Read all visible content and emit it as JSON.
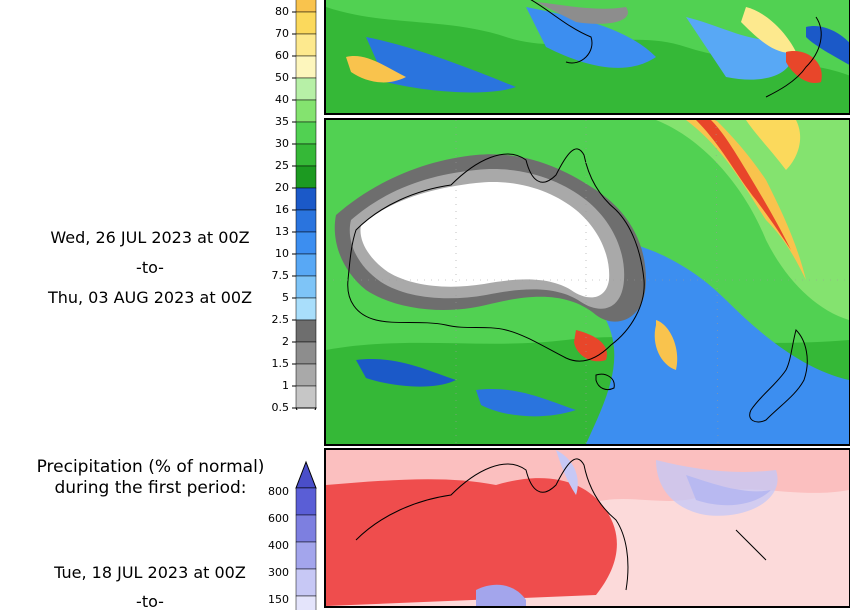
{
  "precip_scale": {
    "labels": [
      "80",
      "70",
      "60",
      "50",
      "40",
      "35",
      "30",
      "25",
      "20",
      "16",
      "13",
      "10",
      "7.5",
      "5",
      "2.5",
      "2",
      "1.5",
      "1",
      "0.5"
    ],
    "colors": [
      "#f9c34d",
      "#fbd95c",
      "#fde98e",
      "#fdf6bd",
      "#b7f0a7",
      "#84e36f",
      "#51d152",
      "#35b837",
      "#1c9a21",
      "#1b59c8",
      "#2a74de",
      "#3c8ef0",
      "#58a8f5",
      "#7ec4f7",
      "#a9defb",
      "#6e6e6e",
      "#8d8d8d",
      "#a9a9a9",
      "#c6c6c6"
    ]
  },
  "second_period": {
    "start": "Wed, 26 JUL 2023 at 00Z",
    "sep": "-to-",
    "end": "Thu, 03 AUG 2023 at 00Z"
  },
  "percent_section": {
    "heading_line1": "Precipitation (% of normal)",
    "heading_line2": "during the first period:",
    "labels": [
      "800",
      "600",
      "400",
      "300",
      "150"
    ],
    "colors": [
      "#5a5ed6",
      "#7d7fe0",
      "#a3a5ec",
      "#c7c8f5",
      "#e4e4fb"
    ],
    "start": "Tue, 18 JUL 2023 at 00Z",
    "sep": "-to-"
  }
}
